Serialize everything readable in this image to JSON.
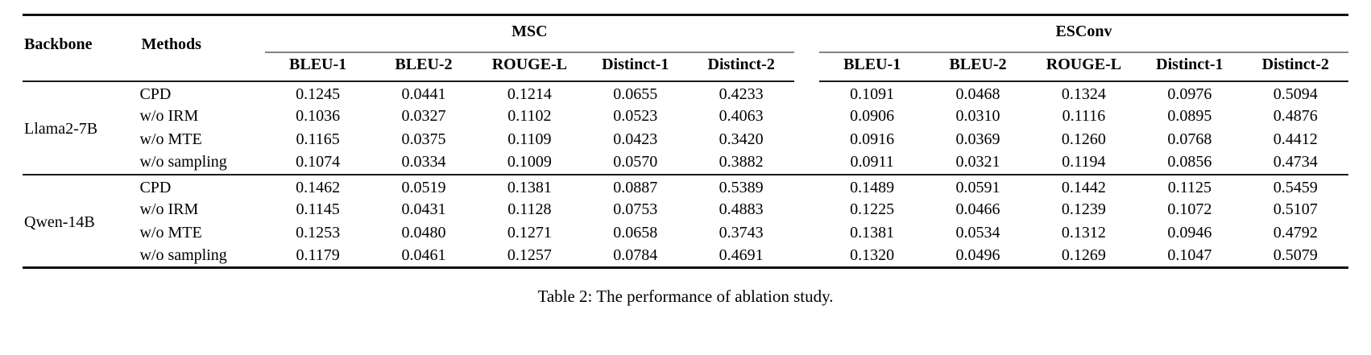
{
  "table": {
    "header": {
      "backbone": "Backbone",
      "methods": "Methods"
    },
    "groups": [
      {
        "label": "MSC",
        "metrics": [
          "BLEU-1",
          "BLEU-2",
          "ROUGE-L",
          "Distinct-1",
          "Distinct-2"
        ]
      },
      {
        "label": "ESConv",
        "metrics": [
          "BLEU-1",
          "BLEU-2",
          "ROUGE-L",
          "Distinct-1",
          "Distinct-2"
        ]
      }
    ],
    "sections": [
      {
        "backbone": "Llama2-7B",
        "rows": [
          {
            "method": "CPD",
            "msc": [
              "0.1245",
              "0.0441",
              "0.1214",
              "0.0655",
              "0.4233"
            ],
            "esconv": [
              "0.1091",
              "0.0468",
              "0.1324",
              "0.0976",
              "0.5094"
            ]
          },
          {
            "method": "w/o IRM",
            "msc": [
              "0.1036",
              "0.0327",
              "0.1102",
              "0.0523",
              "0.4063"
            ],
            "esconv": [
              "0.0906",
              "0.0310",
              "0.1116",
              "0.0895",
              "0.4876"
            ]
          },
          {
            "method": "w/o MTE",
            "msc": [
              "0.1165",
              "0.0375",
              "0.1109",
              "0.0423",
              "0.3420"
            ],
            "esconv": [
              "0.0916",
              "0.0369",
              "0.1260",
              "0.0768",
              "0.4412"
            ]
          },
          {
            "method": "w/o sampling",
            "msc": [
              "0.1074",
              "0.0334",
              "0.1009",
              "0.0570",
              "0.3882"
            ],
            "esconv": [
              "0.0911",
              "0.0321",
              "0.1194",
              "0.0856",
              "0.4734"
            ]
          }
        ]
      },
      {
        "backbone": "Qwen-14B",
        "rows": [
          {
            "method": "CPD",
            "msc": [
              "0.1462",
              "0.0519",
              "0.1381",
              "0.0887",
              "0.5389"
            ],
            "esconv": [
              "0.1489",
              "0.0591",
              "0.1442",
              "0.1125",
              "0.5459"
            ]
          },
          {
            "method": "w/o IRM",
            "msc": [
              "0.1145",
              "0.0431",
              "0.1128",
              "0.0753",
              "0.4883"
            ],
            "esconv": [
              "0.1225",
              "0.0466",
              "0.1239",
              "0.1072",
              "0.5107"
            ]
          },
          {
            "method": "w/o MTE",
            "msc": [
              "0.1253",
              "0.0480",
              "0.1271",
              "0.0658",
              "0.3743"
            ],
            "esconv": [
              "0.1381",
              "0.0534",
              "0.1312",
              "0.0946",
              "0.4792"
            ]
          },
          {
            "method": "w/o sampling",
            "msc": [
              "0.1179",
              "0.0461",
              "0.1257",
              "0.0784",
              "0.4691"
            ],
            "esconv": [
              "0.1320",
              "0.0496",
              "0.1269",
              "0.1047",
              "0.5079"
            ]
          }
        ]
      }
    ]
  },
  "caption": "Table 2: The performance of ablation study.",
  "colors": {
    "rule_heavy": "#111111",
    "rule_light": "#1a1a1a",
    "rule_cmid": "#828282",
    "text": "#000000",
    "background": "#ffffff"
  }
}
